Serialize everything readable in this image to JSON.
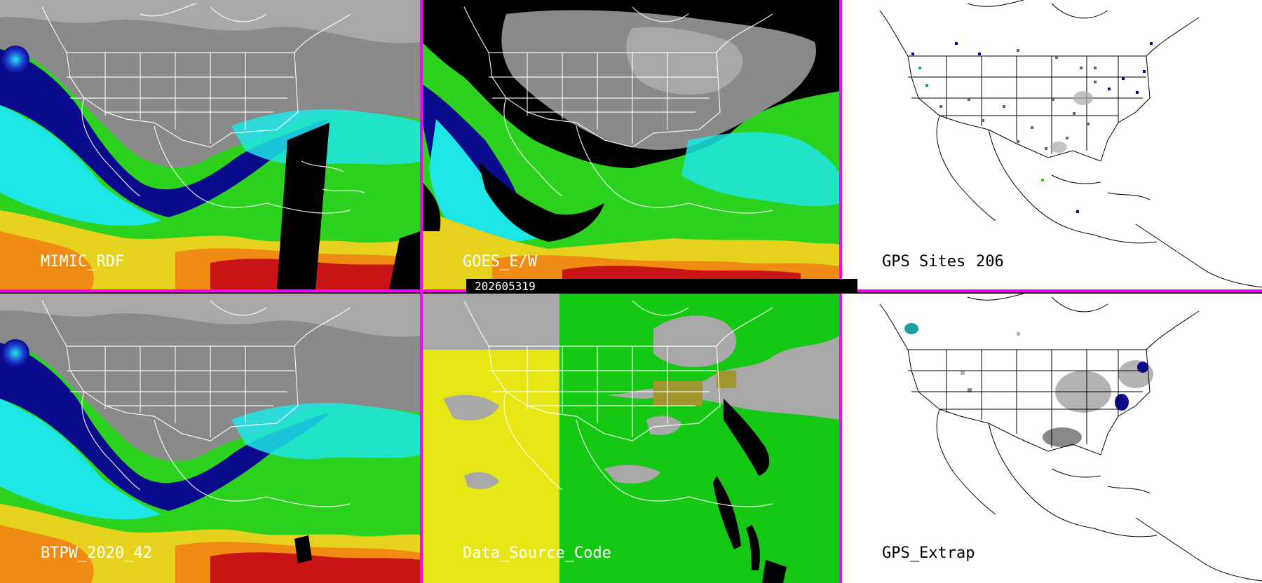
{
  "panels": [
    {
      "id": "p1",
      "label": "MIMIC_RDF",
      "style": "tpw"
    },
    {
      "id": "p2",
      "label": "GOES_E/W",
      "style": "goes"
    },
    {
      "id": "p3",
      "label": "GPS Sites",
      "count": "206",
      "style": "gps"
    },
    {
      "id": "p4",
      "label": "BTPW_2020_42",
      "style": "tpw"
    },
    {
      "id": "p5",
      "label": "Data_Source_Code",
      "style": "dsc"
    },
    {
      "id": "p6",
      "label": "GPS_Extrap",
      "style": "gpsx"
    }
  ],
  "timestamp": "202605319",
  "colors": {
    "divider": "#ff00ff",
    "gray_dry": "#8a8a8a",
    "navy": "#0a0a8c",
    "blue": "#1e3cd2",
    "cyan": "#1ee6e6",
    "green": "#2dd21e",
    "lime": "#9ee61e",
    "yellow": "#e6d21e",
    "orange": "#f08c14",
    "red": "#c81414",
    "dsc_gray": "#a8a8a8",
    "dsc_yellow": "#e6e614",
    "dsc_green": "#14c814",
    "dsc_olive": "#a0962d"
  }
}
